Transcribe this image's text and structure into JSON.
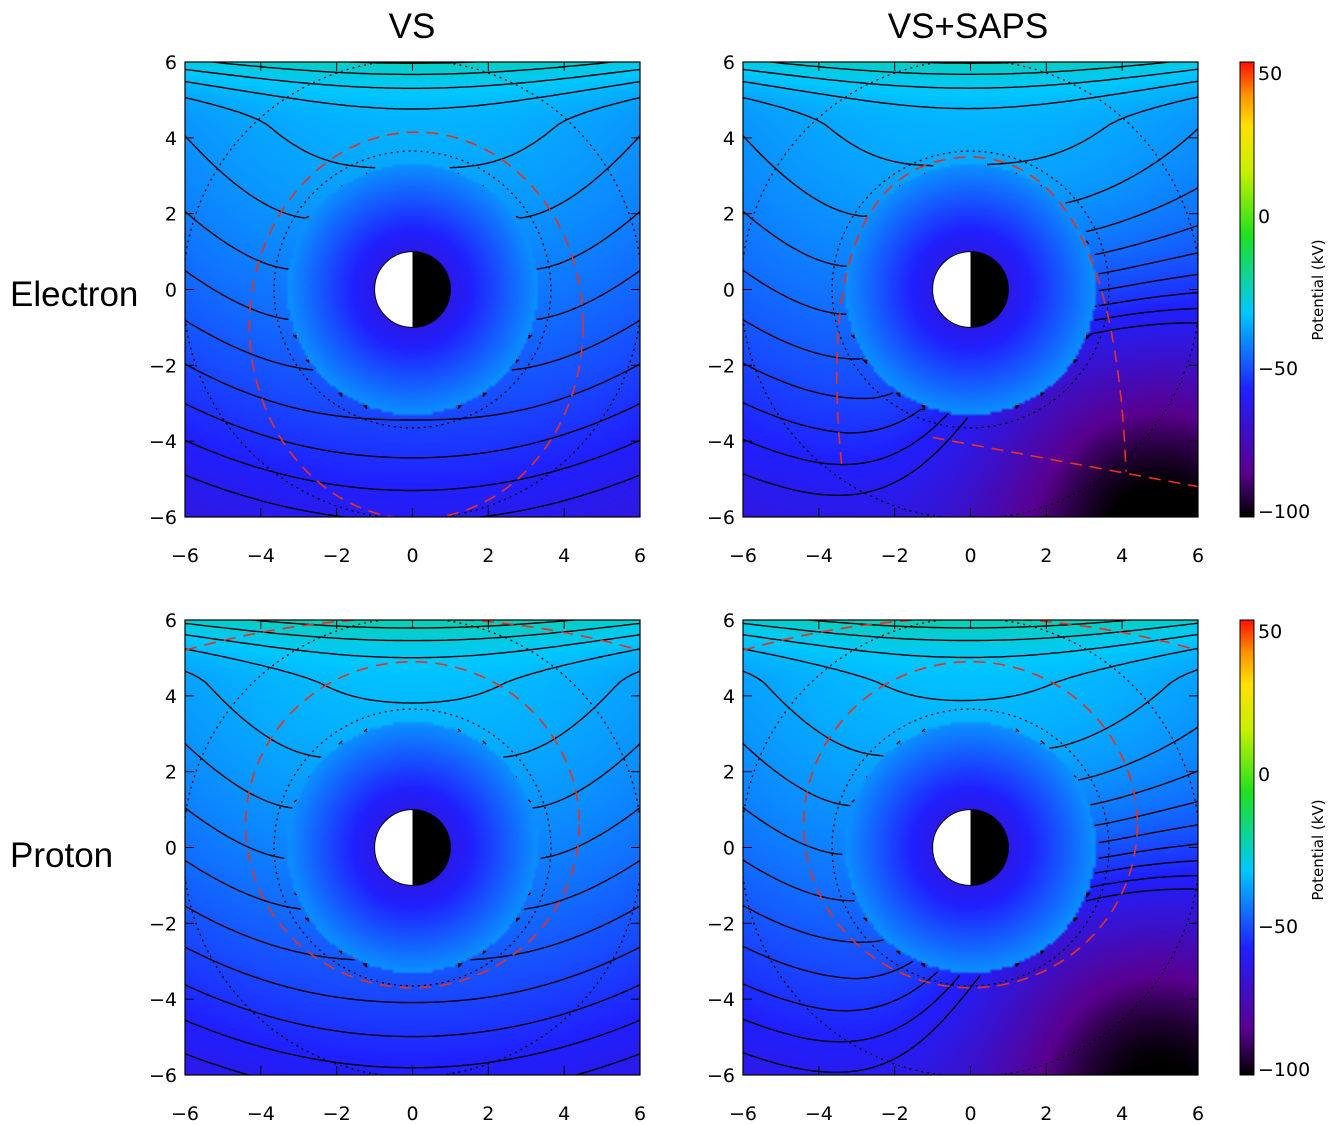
{
  "column_titles": [
    "VS",
    "VS+SAPS"
  ],
  "row_labels": [
    "Electron",
    "Proton"
  ],
  "colorbar": {
    "label": "Potential (kV)",
    "ticks": [
      "50",
      "0",
      "−50",
      "−100"
    ],
    "tick_values": [
      50,
      0,
      -50,
      -100
    ],
    "range": [
      -105,
      55
    ],
    "colors": [
      "#000000",
      "#5a0090",
      "#2020ff",
      "#00c8ff",
      "#20e020",
      "#c8f000",
      "#ffe000",
      "#ff9000",
      "#ff1000"
    ]
  },
  "chart_data": [
    {
      "type": "heatmap",
      "title": "VS",
      "row": "Electron",
      "xlim": [
        -6,
        6
      ],
      "ylim": [
        -6,
        6
      ],
      "xticks": [
        "−6",
        "−4",
        "−2",
        "0",
        "2",
        "4",
        "6"
      ],
      "yticks": [
        "6",
        "4",
        "2",
        "0",
        "−2",
        "−4",
        "−6"
      ],
      "saps": false,
      "contours": "solid black equipotentials",
      "boundary": "red dashed",
      "circles": "black dotted"
    },
    {
      "type": "heatmap",
      "title": "VS+SAPS",
      "row": "Electron",
      "xlim": [
        -6,
        6
      ],
      "ylim": [
        -6,
        6
      ],
      "xticks": [
        "−6",
        "−4",
        "−2",
        "0",
        "2",
        "4",
        "6"
      ],
      "yticks": [
        "6",
        "4",
        "2",
        "0",
        "−2",
        "−4",
        "−6"
      ],
      "saps": true,
      "contours": "solid black equipotentials",
      "boundary": "red dashed",
      "circles": "black dotted"
    },
    {
      "type": "heatmap",
      "title": "VS",
      "row": "Proton",
      "xlim": [
        -6,
        6
      ],
      "ylim": [
        -6,
        6
      ],
      "xticks": [
        "−6",
        "−4",
        "−2",
        "0",
        "2",
        "4",
        "6"
      ],
      "yticks": [
        "6",
        "4",
        "2",
        "0",
        "−2",
        "−4",
        "−6"
      ],
      "saps": false,
      "contours": "solid black equipotentials",
      "boundary": "red dashed",
      "circles": "black dotted"
    },
    {
      "type": "heatmap",
      "title": "VS+SAPS",
      "row": "Proton",
      "xlim": [
        -6,
        6
      ],
      "ylim": [
        -6,
        6
      ],
      "xticks": [
        "−6",
        "−4",
        "−2",
        "0",
        "2",
        "4",
        "6"
      ],
      "yticks": [
        "6",
        "4",
        "2",
        "0",
        "−2",
        "−4",
        "−6"
      ],
      "saps": true,
      "contours": "solid black equipotentials",
      "boundary": "red dashed",
      "circles": "black dotted"
    }
  ]
}
